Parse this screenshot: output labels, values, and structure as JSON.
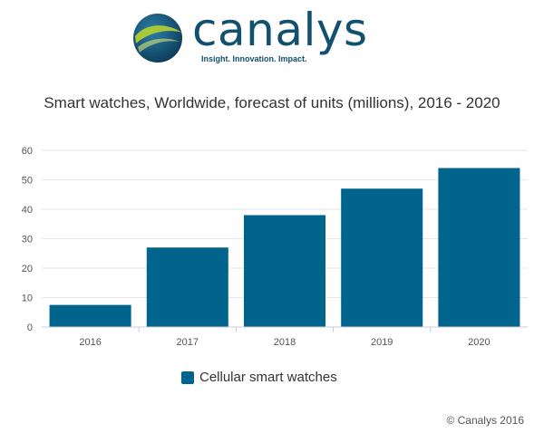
{
  "brand": {
    "name": "canalys",
    "tagline": "Insight. Innovation. Impact."
  },
  "chart_data": {
    "type": "bar",
    "title": "Smart watches, Worldwide, forecast of units (millions), 2016 - 2020",
    "categories": [
      "2016",
      "2017",
      "2018",
      "2019",
      "2020"
    ],
    "series": [
      {
        "name": "Cellular smart watches",
        "values": [
          7.5,
          27,
          38,
          47,
          54
        ]
      }
    ],
    "ylim": [
      0,
      60
    ],
    "yticks": [
      0,
      10,
      20,
      30,
      40,
      50,
      60
    ],
    "grid": true,
    "legend_position": "bottom",
    "bar_color": "#00648c"
  },
  "footer": {
    "copyright": "© Canalys 2016"
  }
}
